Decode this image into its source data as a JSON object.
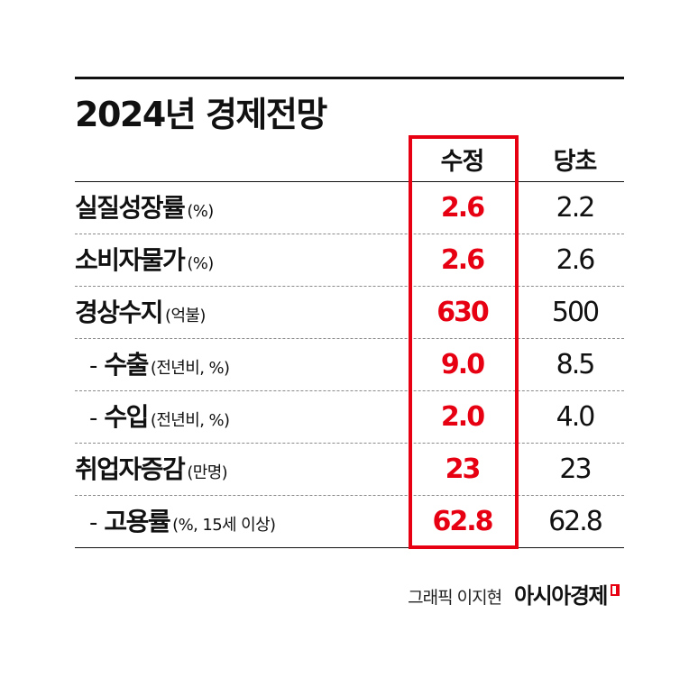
{
  "chart_data": {
    "type": "table",
    "title": "2024년 경제전망",
    "columns": [
      "수정",
      "당초"
    ],
    "rows": [
      {
        "label": "실질성장률",
        "unit": "(%)",
        "indent": false,
        "revised": 2.6,
        "revised_text": "2.6",
        "original": 2.2,
        "original_text": "2.2"
      },
      {
        "label": "소비자물가",
        "unit": "(%)",
        "indent": false,
        "revised": 2.6,
        "revised_text": "2.6",
        "original": 2.6,
        "original_text": "2.6"
      },
      {
        "label": "경상수지",
        "unit": "(억불)",
        "indent": false,
        "revised": 630,
        "revised_text": "630",
        "original": 500,
        "original_text": "500"
      },
      {
        "label": "수출",
        "unit": "(전년비, %)",
        "indent": true,
        "revised": 9.0,
        "revised_text": "9.0",
        "original": 8.5,
        "original_text": "8.5"
      },
      {
        "label": "수입",
        "unit": "(전년비, %)",
        "indent": true,
        "revised": 2.0,
        "revised_text": "2.0",
        "original": 4.0,
        "original_text": "4.0"
      },
      {
        "label": "취업자증감",
        "unit": "(만명)",
        "indent": false,
        "revised": 23,
        "revised_text": "23",
        "original": 23,
        "original_text": "23"
      },
      {
        "label": "고용률",
        "unit": "(%, 15세 이상)",
        "indent": true,
        "revised": 62.8,
        "revised_text": "62.8",
        "original": 62.8,
        "original_text": "62.8"
      }
    ],
    "highlight_column": "수정",
    "colors": {
      "highlight": "#e60012",
      "text": "#111111",
      "divider": "#8a8a8a"
    }
  },
  "dash": "-",
  "credit": {
    "text": "그래픽 이지현",
    "brand": "아시아경제"
  }
}
